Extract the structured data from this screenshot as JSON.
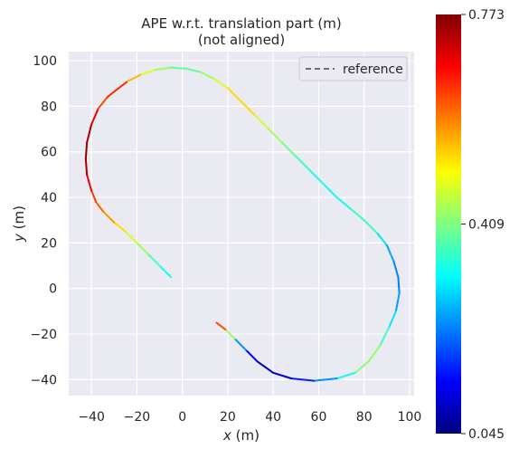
{
  "chart_data": {
    "type": "line",
    "title": "APE w.r.t. translation part (m)",
    "subtitle": "(not aligned)",
    "xlabel_var": "x",
    "xlabel_unit": "(m)",
    "ylabel_var": "y",
    "ylabel_unit": "(m)",
    "xlim": [
      -50,
      102
    ],
    "ylim": [
      -47,
      104
    ],
    "xticks": [
      -40,
      -20,
      0,
      20,
      40,
      60,
      80,
      100
    ],
    "yticks": [
      -40,
      -20,
      0,
      20,
      40,
      60,
      80,
      100
    ],
    "grid": true,
    "background": "#eaeaf2",
    "legend": {
      "placement": "top-right",
      "entries": [
        {
          "label": "reference",
          "style": "dashed",
          "color": "#6e6e6e"
        }
      ]
    },
    "colorbar": {
      "cmap": "jet",
      "min": 0.045,
      "max": 0.773,
      "ticks": [
        0.773,
        0.409,
        0.045
      ]
    },
    "trajectory": [
      {
        "x": -5,
        "y": 5,
        "error": 0.32
      },
      {
        "x": -10,
        "y": 10,
        "error": 0.34
      },
      {
        "x": -15,
        "y": 15,
        "error": 0.4
      },
      {
        "x": -20,
        "y": 20,
        "error": 0.45
      },
      {
        "x": -25,
        "y": 25,
        "error": 0.5
      },
      {
        "x": -30,
        "y": 29,
        "error": 0.55
      },
      {
        "x": -35,
        "y": 34,
        "error": 0.6
      },
      {
        "x": -38,
        "y": 38,
        "error": 0.62
      },
      {
        "x": -40,
        "y": 43,
        "error": 0.66
      },
      {
        "x": -42,
        "y": 50,
        "error": 0.72
      },
      {
        "x": -42.5,
        "y": 57,
        "error": 0.77
      },
      {
        "x": -42,
        "y": 64,
        "error": 0.76
      },
      {
        "x": -40,
        "y": 72,
        "error": 0.74
      },
      {
        "x": -37,
        "y": 79,
        "error": 0.66
      },
      {
        "x": -33,
        "y": 84,
        "error": 0.6
      },
      {
        "x": -28,
        "y": 88,
        "error": 0.7
      },
      {
        "x": -24,
        "y": 91,
        "error": 0.6
      },
      {
        "x": -18,
        "y": 94,
        "error": 0.5
      },
      {
        "x": -12,
        "y": 96,
        "error": 0.45
      },
      {
        "x": -5,
        "y": 97,
        "error": 0.4
      },
      {
        "x": 2,
        "y": 96.5,
        "error": 0.38
      },
      {
        "x": 8,
        "y": 95,
        "error": 0.4
      },
      {
        "x": 14,
        "y": 92,
        "error": 0.45
      },
      {
        "x": 20,
        "y": 88,
        "error": 0.5
      },
      {
        "x": 26,
        "y": 82,
        "error": 0.55
      },
      {
        "x": 32,
        "y": 76,
        "error": 0.5
      },
      {
        "x": 38,
        "y": 70,
        "error": 0.45
      },
      {
        "x": 44,
        "y": 64,
        "error": 0.42
      },
      {
        "x": 50,
        "y": 58,
        "error": 0.38
      },
      {
        "x": 56,
        "y": 52,
        "error": 0.35
      },
      {
        "x": 62,
        "y": 46,
        "error": 0.33
      },
      {
        "x": 68,
        "y": 40,
        "error": 0.32
      },
      {
        "x": 74,
        "y": 35,
        "error": 0.34
      },
      {
        "x": 80,
        "y": 30,
        "error": 0.38
      },
      {
        "x": 86,
        "y": 24,
        "error": 0.33
      },
      {
        "x": 90,
        "y": 19,
        "error": 0.27
      },
      {
        "x": 93,
        "y": 12,
        "error": 0.24
      },
      {
        "x": 95,
        "y": 5,
        "error": 0.22
      },
      {
        "x": 95.5,
        "y": -2,
        "error": 0.23
      },
      {
        "x": 94,
        "y": -10,
        "error": 0.27
      },
      {
        "x": 91,
        "y": -17,
        "error": 0.33
      },
      {
        "x": 87,
        "y": -25,
        "error": 0.4
      },
      {
        "x": 82,
        "y": -32,
        "error": 0.45
      },
      {
        "x": 76,
        "y": -37,
        "error": 0.38
      },
      {
        "x": 68,
        "y": -39.5,
        "error": 0.28
      },
      {
        "x": 58,
        "y": -40.5,
        "error": 0.2
      },
      {
        "x": 48,
        "y": -39.5,
        "error": 0.12
      },
      {
        "x": 40,
        "y": -37,
        "error": 0.08
      },
      {
        "x": 33,
        "y": -32,
        "error": 0.1
      },
      {
        "x": 28,
        "y": -27,
        "error": 0.16
      },
      {
        "x": 23,
        "y": -22,
        "error": 0.32
      },
      {
        "x": 19,
        "y": -18,
        "error": 0.55
      },
      {
        "x": 15,
        "y": -15,
        "error": 0.7
      }
    ]
  }
}
